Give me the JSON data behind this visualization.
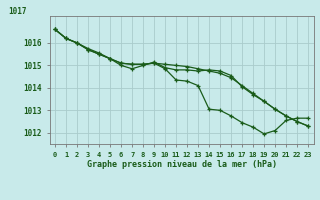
{
  "series1": [
    1016.6,
    1016.2,
    1016.0,
    1015.75,
    1015.55,
    1015.3,
    1015.1,
    1015.05,
    1015.05,
    1015.1,
    1014.85,
    1014.35,
    1014.3,
    1014.1,
    1013.05,
    1013.0,
    1012.75,
    1012.45,
    1012.25,
    1011.95,
    1012.1,
    1012.55,
    1012.65,
    1012.65
  ],
  "series2": [
    1016.6,
    1016.2,
    1016.0,
    1015.7,
    1015.5,
    1015.3,
    1015.0,
    1014.85,
    1015.0,
    1015.15,
    1014.9,
    1014.8,
    1014.8,
    1014.75,
    1014.8,
    1014.75,
    1014.55,
    1014.05,
    1013.7,
    1013.4,
    1013.05,
    1012.75,
    1012.5,
    1012.3
  ],
  "series3": [
    1016.6,
    1016.2,
    1016.0,
    1015.7,
    1015.5,
    1015.3,
    1015.1,
    1015.05,
    1015.05,
    1015.1,
    1015.05,
    1015.0,
    1014.95,
    1014.85,
    1014.75,
    1014.65,
    1014.45,
    1014.1,
    1013.75,
    1013.4,
    1013.05,
    1012.75,
    1012.5,
    1012.3
  ],
  "x": [
    0,
    1,
    2,
    3,
    4,
    5,
    6,
    7,
    8,
    9,
    10,
    11,
    12,
    13,
    14,
    15,
    16,
    17,
    18,
    19,
    20,
    21,
    22,
    23
  ],
  "line_color": "#1a5c1a",
  "bg_color": "#c8eaea",
  "grid_color": "#aacccc",
  "xlabel": "Graphe pression niveau de la mer (hPa)",
  "ylim": [
    1011.5,
    1017.2
  ],
  "yticks": [
    1012,
    1013,
    1014,
    1015,
    1016
  ],
  "ytop_label": "1017",
  "marker": "+",
  "marker_size": 3.5,
  "line_width": 0.9
}
